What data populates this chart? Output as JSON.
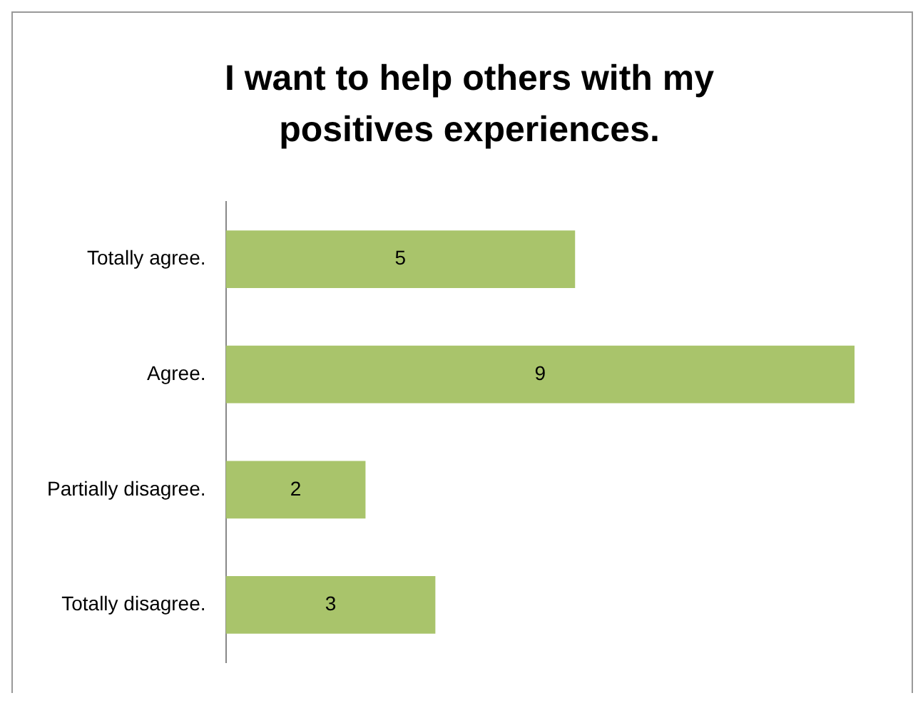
{
  "chart_data": {
    "type": "bar",
    "orientation": "horizontal",
    "title": "I want to help others with my positives experiences.",
    "categories": [
      "Totally agree.",
      "Agree.",
      "Partially disagree.",
      "Totally disagree."
    ],
    "values": [
      5,
      9,
      2,
      3
    ],
    "color": "#a9c46b",
    "data_labels": true
  }
}
